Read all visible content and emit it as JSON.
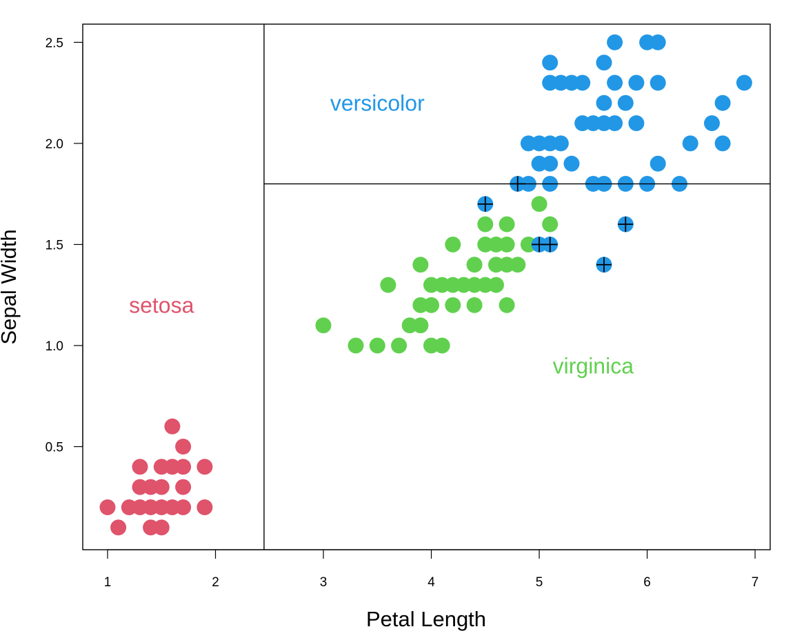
{
  "chart_data": {
    "type": "scatter",
    "xlabel": "Petal Length",
    "ylabel": "Sepal Width",
    "xlim": [
      0.77,
      7.14
    ],
    "ylim": [
      -0.01,
      2.59
    ],
    "x_ticks": [
      1,
      2,
      3,
      4,
      5,
      6,
      7
    ],
    "x_tick_labels": [
      "1",
      "2",
      "3",
      "4",
      "5",
      "6",
      "7"
    ],
    "y_ticks": [
      0.5,
      1.0,
      1.5,
      2.0,
      2.5
    ],
    "y_tick_labels": [
      "0.5",
      "1.0",
      "1.5",
      "2.0",
      "2.5"
    ],
    "grid": false,
    "colors": {
      "setosa": "#DF536B",
      "versicolor": "#2297E6",
      "virginica": "#61D04F"
    },
    "split_lines": {
      "petal_length": 2.45,
      "sepal_width": 1.8
    },
    "region_labels": [
      {
        "text": "setosa",
        "color": "#DF536B",
        "x": 1.5,
        "y": 1.2
      },
      {
        "text": "versicolor",
        "color": "#2297E6",
        "x": 3.5,
        "y": 2.2
      },
      {
        "text": "virginica",
        "color": "#61D04F",
        "x": 5.5,
        "y": 0.9
      }
    ],
    "series": [
      {
        "class": "setosa",
        "points": [
          [
            1.0,
            0.2
          ],
          [
            1.1,
            0.1
          ],
          [
            1.2,
            0.2
          ],
          [
            1.3,
            0.2
          ],
          [
            1.3,
            0.3
          ],
          [
            1.3,
            0.4
          ],
          [
            1.4,
            0.1
          ],
          [
            1.4,
            0.2
          ],
          [
            1.4,
            0.3
          ],
          [
            1.5,
            0.1
          ],
          [
            1.5,
            0.2
          ],
          [
            1.5,
            0.3
          ],
          [
            1.5,
            0.4
          ],
          [
            1.6,
            0.2
          ],
          [
            1.6,
            0.4
          ],
          [
            1.6,
            0.6
          ],
          [
            1.7,
            0.2
          ],
          [
            1.7,
            0.3
          ],
          [
            1.7,
            0.4
          ],
          [
            1.7,
            0.5
          ],
          [
            1.9,
            0.2
          ],
          [
            1.9,
            0.4
          ]
        ]
      },
      {
        "class": "virginica",
        "points": [
          [
            3.0,
            1.1
          ],
          [
            3.3,
            1.0
          ],
          [
            3.5,
            1.0
          ],
          [
            3.6,
            1.3
          ],
          [
            3.7,
            1.0
          ],
          [
            3.8,
            1.1
          ],
          [
            3.9,
            1.1
          ],
          [
            3.9,
            1.2
          ],
          [
            3.9,
            1.4
          ],
          [
            4.0,
            1.0
          ],
          [
            4.0,
            1.2
          ],
          [
            4.0,
            1.3
          ],
          [
            4.1,
            1.0
          ],
          [
            4.1,
            1.3
          ],
          [
            4.2,
            1.2
          ],
          [
            4.2,
            1.3
          ],
          [
            4.2,
            1.5
          ],
          [
            4.3,
            1.3
          ],
          [
            4.4,
            1.2
          ],
          [
            4.4,
            1.3
          ],
          [
            4.4,
            1.4
          ],
          [
            4.5,
            1.3
          ],
          [
            4.5,
            1.5
          ],
          [
            4.5,
            1.6
          ],
          [
            4.6,
            1.3
          ],
          [
            4.6,
            1.5
          ],
          [
            4.7,
            1.2
          ],
          [
            4.7,
            1.4
          ],
          [
            4.7,
            1.5
          ],
          [
            4.7,
            1.6
          ],
          [
            4.6,
            1.4
          ],
          [
            4.8,
            1.4
          ],
          [
            4.9,
            1.5
          ],
          [
            5.0,
            1.7
          ],
          [
            5.1,
            1.6
          ]
        ]
      },
      {
        "class": "versicolor",
        "points": [
          [
            4.8,
            1.8
          ],
          [
            4.9,
            1.8
          ],
          [
            4.9,
            2.0
          ],
          [
            5.0,
            1.9
          ],
          [
            5.0,
            2.0
          ],
          [
            5.1,
            1.8
          ],
          [
            5.1,
            1.9
          ],
          [
            5.1,
            2.0
          ],
          [
            5.1,
            2.3
          ],
          [
            5.1,
            2.4
          ],
          [
            5.2,
            2.0
          ],
          [
            5.2,
            2.3
          ],
          [
            5.3,
            1.9
          ],
          [
            5.3,
            2.3
          ],
          [
            5.4,
            2.1
          ],
          [
            5.4,
            2.3
          ],
          [
            5.5,
            1.8
          ],
          [
            5.5,
            2.1
          ],
          [
            5.6,
            1.8
          ],
          [
            5.6,
            2.1
          ],
          [
            5.6,
            2.2
          ],
          [
            5.6,
            2.4
          ],
          [
            5.7,
            2.1
          ],
          [
            5.7,
            2.3
          ],
          [
            5.7,
            2.5
          ],
          [
            5.8,
            1.8
          ],
          [
            5.8,
            2.2
          ],
          [
            5.9,
            2.1
          ],
          [
            5.9,
            2.3
          ],
          [
            6.0,
            1.8
          ],
          [
            6.0,
            2.5
          ],
          [
            6.1,
            1.9
          ],
          [
            6.1,
            2.3
          ],
          [
            6.1,
            2.5
          ],
          [
            6.3,
            1.8
          ],
          [
            6.4,
            2.0
          ],
          [
            6.6,
            2.1
          ],
          [
            6.7,
            2.0
          ],
          [
            6.7,
            2.2
          ],
          [
            6.9,
            2.3
          ],
          [
            4.5,
            1.7
          ],
          [
            5.0,
            1.5
          ],
          [
            5.1,
            1.5
          ],
          [
            5.6,
            1.4
          ],
          [
            5.8,
            1.6
          ]
        ]
      }
    ],
    "misclassified": [
      [
        4.8,
        1.8
      ],
      [
        4.5,
        1.7
      ],
      [
        5.0,
        1.5
      ],
      [
        5.1,
        1.5
      ],
      [
        5.6,
        1.4
      ],
      [
        5.8,
        1.6
      ]
    ]
  }
}
